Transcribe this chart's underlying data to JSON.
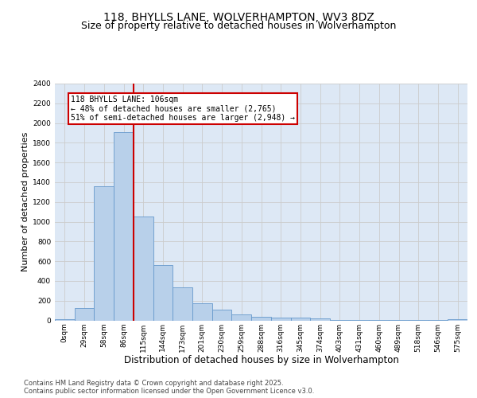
{
  "title": "118, BHYLLS LANE, WOLVERHAMPTON, WV3 8DZ",
  "subtitle": "Size of property relative to detached houses in Wolverhampton",
  "xlabel": "Distribution of detached houses by size in Wolverhampton",
  "ylabel": "Number of detached properties",
  "bar_labels": [
    "0sqm",
    "29sqm",
    "58sqm",
    "86sqm",
    "115sqm",
    "144sqm",
    "173sqm",
    "201sqm",
    "230sqm",
    "259sqm",
    "288sqm",
    "316sqm",
    "345sqm",
    "374sqm",
    "403sqm",
    "431sqm",
    "460sqm",
    "489sqm",
    "518sqm",
    "546sqm",
    "575sqm"
  ],
  "bar_values": [
    10,
    125,
    1360,
    1910,
    1055,
    560,
    335,
    170,
    110,
    62,
    35,
    28,
    25,
    18,
    5,
    5,
    5,
    5,
    3,
    2,
    12
  ],
  "bar_color": "#b8d0ea",
  "bar_edge_color": "#6699cc",
  "red_line_x": 3.5,
  "annotation_text": "118 BHYLLS LANE: 106sqm\n← 48% of detached houses are smaller (2,765)\n51% of semi-detached houses are larger (2,948) →",
  "annotation_box_color": "#ffffff",
  "annotation_box_edge": "#cc0000",
  "red_line_color": "#cc0000",
  "ylim": [
    0,
    2400
  ],
  "yticks": [
    0,
    200,
    400,
    600,
    800,
    1000,
    1200,
    1400,
    1600,
    1800,
    2000,
    2200,
    2400
  ],
  "grid_color": "#cccccc",
  "bg_color": "#dde8f5",
  "footer": "Contains HM Land Registry data © Crown copyright and database right 2025.\nContains public sector information licensed under the Open Government Licence v3.0.",
  "title_fontsize": 10,
  "subtitle_fontsize": 9,
  "tick_fontsize": 6.5,
  "xlabel_fontsize": 8.5,
  "ylabel_fontsize": 8
}
